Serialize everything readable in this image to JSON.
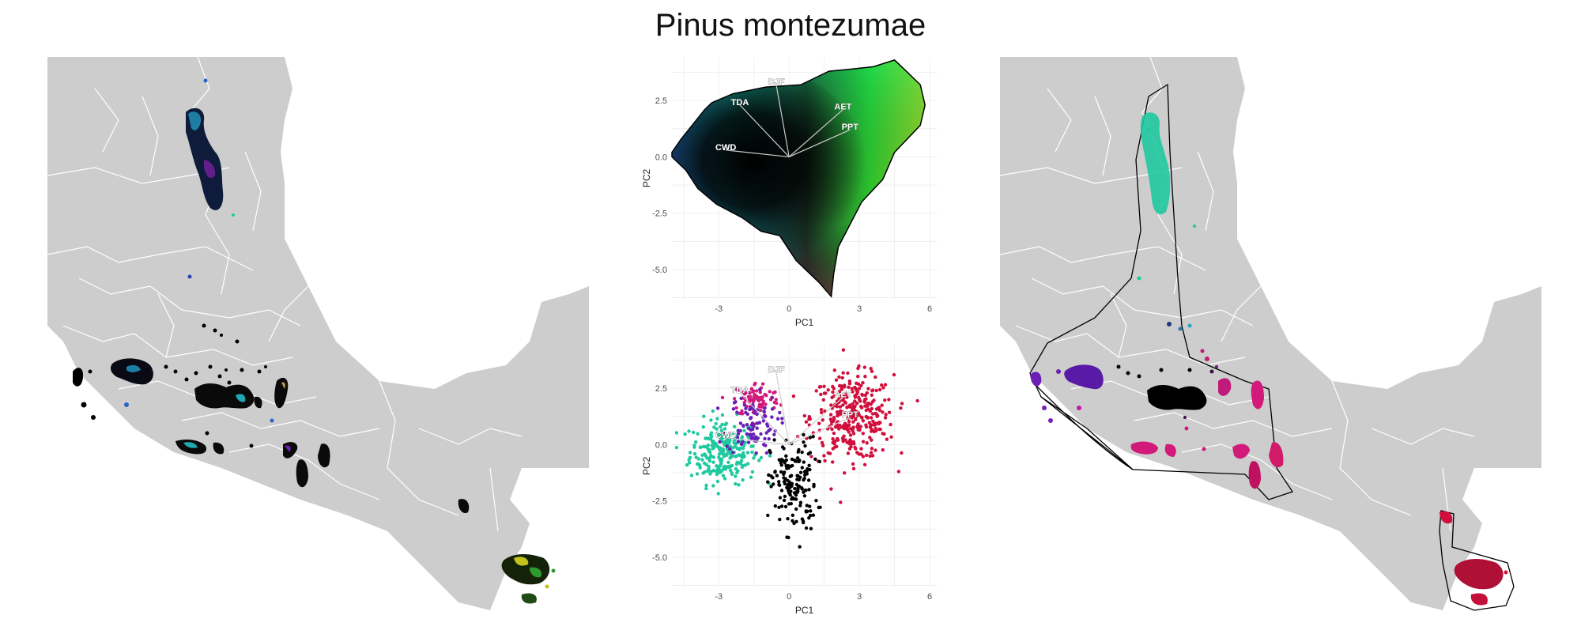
{
  "title": "Pinus montezumae",
  "colors": {
    "land": "#cdcdcd",
    "border": "#ffffff",
    "grid": "#ebebeb",
    "hull": "#000000",
    "cluster_teal": "#1fc9a0",
    "cluster_purple": "#6a1fb5",
    "cluster_black": "#000000",
    "cluster_magenta": "#d11a7a",
    "cluster_crimson": "#d10f3c"
  },
  "chart_data": [
    {
      "type": "scatter",
      "panel": "pca-colored-by-position",
      "xlabel": "PC1",
      "ylabel": "PC2",
      "xlim": [
        -5,
        6.3
      ],
      "ylim": [
        -6.3,
        4.4
      ],
      "x_ticks": [
        "-3",
        "0",
        "3",
        "6"
      ],
      "y_ticks": [
        "2.5",
        "0.0",
        "-2.5",
        "-5.0"
      ],
      "grid": true,
      "loadings": [
        {
          "name": "DJF",
          "x": -0.55,
          "y": 3.2
        },
        {
          "name": "TDA",
          "x": -2.1,
          "y": 2.3
        },
        {
          "name": "AET",
          "x": 2.3,
          "y": 2.1
        },
        {
          "name": "PPT",
          "x": 2.6,
          "y": 1.2
        },
        {
          "name": "CWD",
          "x": -2.7,
          "y": 0.3
        }
      ],
      "hull_outline": [
        [
          -5.0,
          0.2
        ],
        [
          -4.6,
          0.8
        ],
        [
          -3.6,
          2.1
        ],
        [
          -3.3,
          2.4
        ],
        [
          -2.4,
          2.8
        ],
        [
          -1.0,
          3.1
        ],
        [
          0.5,
          3.2
        ],
        [
          1.7,
          3.8
        ],
        [
          2.7,
          3.9
        ],
        [
          3.6,
          4.0
        ],
        [
          4.5,
          4.3
        ],
        [
          5.0,
          3.8
        ],
        [
          5.6,
          3.2
        ],
        [
          5.8,
          2.3
        ],
        [
          5.6,
          1.4
        ],
        [
          4.5,
          0.2
        ],
        [
          4.0,
          -1.0
        ],
        [
          3.1,
          -2.0
        ],
        [
          2.6,
          -3.0
        ],
        [
          2.1,
          -4.0
        ],
        [
          1.9,
          -5.2
        ],
        [
          1.8,
          -6.2
        ],
        [
          1.3,
          -5.6
        ],
        [
          0.7,
          -5.0
        ],
        [
          0.3,
          -4.6
        ],
        [
          -0.4,
          -3.5
        ],
        [
          -1.2,
          -3.3
        ],
        [
          -2.0,
          -2.7
        ],
        [
          -3.1,
          -2.1
        ],
        [
          -3.9,
          -1.4
        ],
        [
          -4.4,
          -0.6
        ],
        [
          -5.0,
          0.0
        ]
      ]
    },
    {
      "type": "scatter",
      "panel": "pca-colored-by-cluster",
      "xlabel": "PC1",
      "ylabel": "PC2",
      "xlim": [
        -5,
        6.3
      ],
      "ylim": [
        -6.3,
        4.4
      ],
      "x_ticks": [
        "-3",
        "0",
        "3",
        "6"
      ],
      "y_ticks": [
        "2.5",
        "0.0",
        "-2.5",
        "-5.0"
      ],
      "grid": true,
      "loadings": [
        {
          "name": "DJF",
          "x": -0.55,
          "y": 3.2
        },
        {
          "name": "TDA",
          "x": -2.1,
          "y": 2.3
        },
        {
          "name": "AET",
          "x": 2.3,
          "y": 2.1
        },
        {
          "name": "PPT",
          "x": 2.6,
          "y": 1.2
        },
        {
          "name": "CWD",
          "x": -2.7,
          "y": 0.3
        }
      ],
      "series": [
        {
          "color": "#1fc9a0",
          "center": [
            -2.8,
            -0.3
          ],
          "spread": [
            1.3,
            1.3
          ],
          "count": 260
        },
        {
          "color": "#d10f3c",
          "center": [
            2.7,
            1.2
          ],
          "spread": [
            1.6,
            1.7
          ],
          "count": 340
        },
        {
          "color": "#d11a7a",
          "center": [
            -1.4,
            2.0
          ],
          "spread": [
            0.9,
            0.7
          ],
          "count": 90
        },
        {
          "color": "#6a1fb5",
          "center": [
            -1.6,
            0.9
          ],
          "spread": [
            1.0,
            1.2
          ],
          "count": 90
        },
        {
          "color": "#000000",
          "center": [
            0.2,
            -1.8
          ],
          "spread": [
            0.9,
            1.9
          ],
          "count": 160
        }
      ]
    }
  ]
}
